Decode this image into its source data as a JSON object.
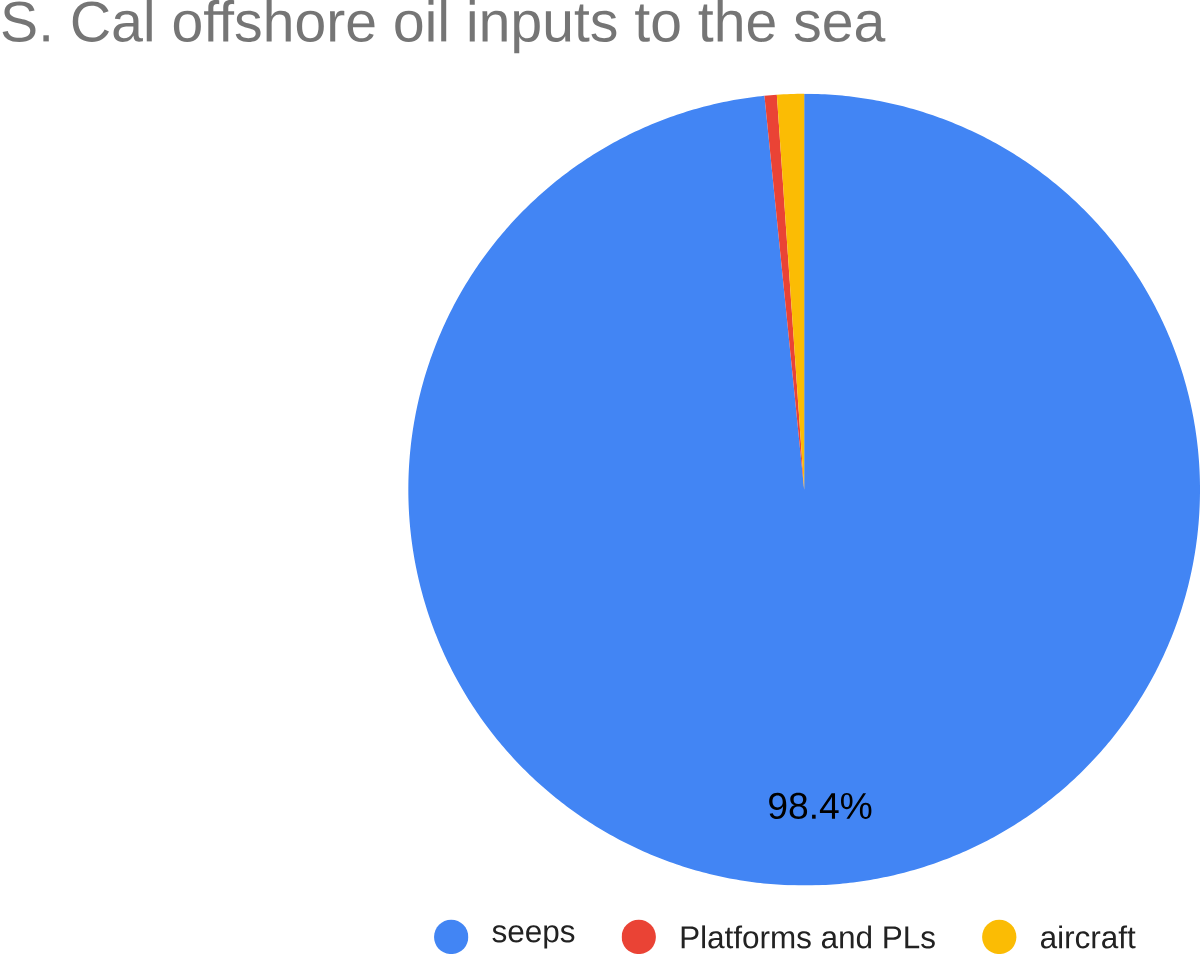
{
  "chart_data": {
    "type": "pie",
    "title": "S. Cal offshore oil inputs to the sea",
    "categories": [
      "seeps",
      "Platforms and PLs",
      "aircraft"
    ],
    "values": [
      98.4,
      0.5,
      1.1
    ],
    "colors": [
      "#4285f4",
      "#ea4335",
      "#fbbc04"
    ],
    "value_labels": [
      "98.4%",
      null,
      null
    ],
    "legend": "bottom"
  }
}
